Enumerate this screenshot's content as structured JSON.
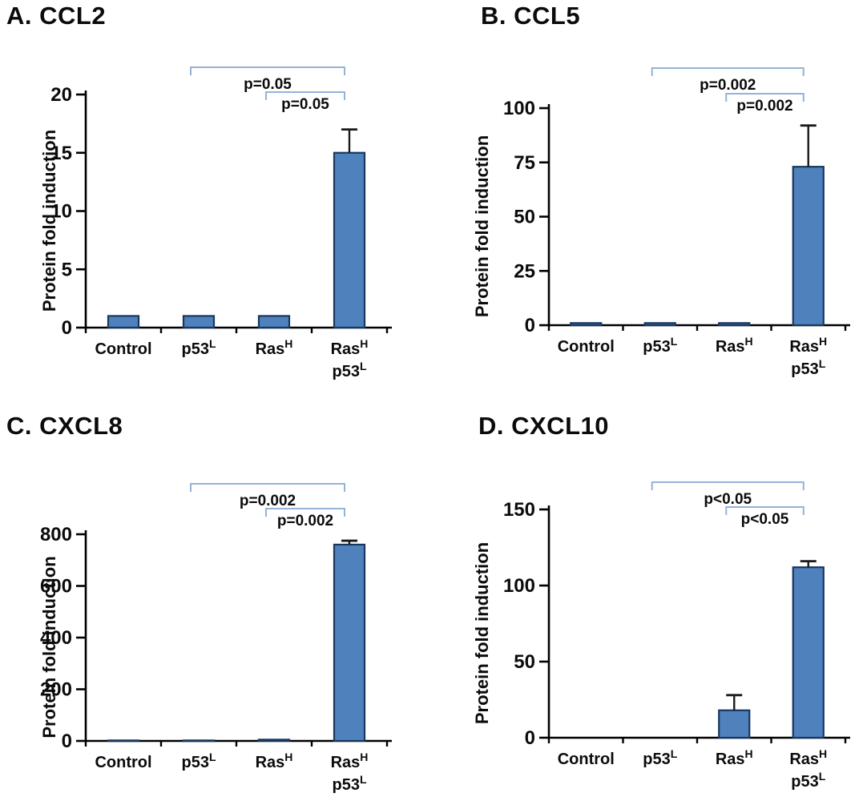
{
  "figure_name": "Protein fold induction bar charts",
  "colors": {
    "bar_fill": "#4F81BD",
    "bar_stroke": "#17375E",
    "axis": "#000000",
    "error_bar": "#1a1a1a",
    "bracket": "#95B3D7",
    "text": "#0b0b0b"
  },
  "chart_data": [
    {
      "type": "bar",
      "title": "A. CCL2",
      "ylabel": "Protein fold induction",
      "xlabel": "",
      "ylim": [
        0,
        20
      ],
      "yticks": [
        0,
        5,
        10,
        15,
        20
      ],
      "grid": false,
      "legend": false,
      "categories": [
        "Control",
        "p53^L",
        "Ras^H",
        "Ras^H\np53^L"
      ],
      "values": [
        1,
        1,
        1,
        15
      ],
      "errors_plus": [
        0,
        0,
        0,
        2
      ],
      "significance": [
        {
          "from": 1,
          "to": 3,
          "label": "p=0.05"
        },
        {
          "from": 2,
          "to": 3,
          "label": "p=0.05"
        }
      ]
    },
    {
      "type": "bar",
      "title": "B. CCL5",
      "ylabel": "Protein fold induction",
      "xlabel": "",
      "ylim": [
        0,
        100
      ],
      "yticks": [
        0,
        25,
        50,
        75,
        100
      ],
      "grid": false,
      "legend": false,
      "categories": [
        "Control",
        "p53^L",
        "Ras^H",
        "Ras^H\np53^L"
      ],
      "values": [
        1,
        1,
        1,
        73
      ],
      "errors_plus": [
        0,
        0,
        0,
        19
      ],
      "significance": [
        {
          "from": 1,
          "to": 3,
          "label": "p=0.002"
        },
        {
          "from": 2,
          "to": 3,
          "label": "p=0.002"
        }
      ]
    },
    {
      "type": "bar",
      "title": "C. CXCL8",
      "ylabel": "Protein fold induction",
      "xlabel": "",
      "ylim": [
        0,
        800
      ],
      "yticks": [
        0,
        200,
        400,
        600,
        800
      ],
      "grid": false,
      "legend": false,
      "categories": [
        "Control",
        "p53^L",
        "Ras^H",
        "Ras^H\np53^L"
      ],
      "values": [
        2,
        2,
        5,
        760
      ],
      "errors_plus": [
        0,
        0,
        0,
        15
      ],
      "significance": [
        {
          "from": 1,
          "to": 3,
          "label": "p=0.002"
        },
        {
          "from": 2,
          "to": 3,
          "label": "p=0.002"
        }
      ]
    },
    {
      "type": "bar",
      "title": "D. CXCL10",
      "ylabel": "Protein fold induction",
      "xlabel": "",
      "ylim": [
        0,
        150
      ],
      "yticks": [
        0,
        50,
        100,
        150
      ],
      "grid": false,
      "legend": false,
      "categories": [
        "Control",
        "p53^L",
        "Ras^H",
        "Ras^H\np53^L"
      ],
      "values": [
        0,
        0,
        18,
        112
      ],
      "errors_plus": [
        0,
        0,
        10,
        4
      ],
      "significance": [
        {
          "from": 1,
          "to": 3,
          "label": "p<0.05"
        },
        {
          "from": 2,
          "to": 3,
          "label": "p<0.05"
        }
      ]
    }
  ]
}
